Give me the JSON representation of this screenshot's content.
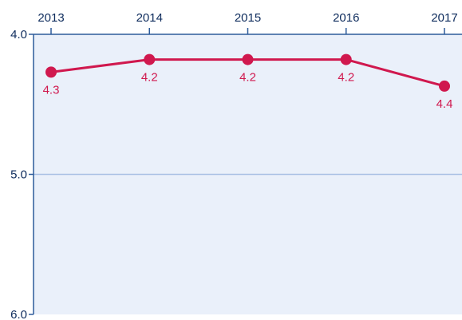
{
  "chart_data": {
    "type": "line",
    "title": "",
    "xlabel": "",
    "ylabel": "",
    "x": [
      "2013",
      "2014",
      "2015",
      "2016",
      "2017"
    ],
    "y_axis": {
      "reversed": true,
      "range": [
        4.0,
        6.0
      ],
      "ticks": [
        "4.0",
        "5.0",
        "6.0"
      ]
    },
    "grid": {
      "horizontal_at": [
        5.0
      ]
    },
    "series": [
      {
        "values": [
          4.27,
          4.18,
          4.18,
          4.18,
          4.37
        ],
        "labels": [
          "4.3",
          "4.2",
          "4.2",
          "4.2",
          "4.4"
        ]
      }
    ],
    "legend": "none"
  },
  "colors": {
    "background": "#ffffff",
    "plot_background": "#eaf0fa",
    "axis": "#2d5b9a",
    "gridline": "#a9c0e4",
    "tick_text": "#0d2b5c",
    "series_line": "#d0184e",
    "data_label": "#d0184e"
  }
}
